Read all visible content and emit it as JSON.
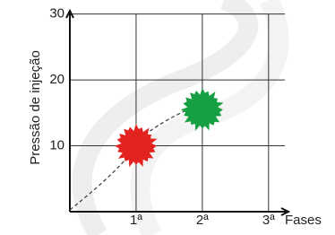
{
  "chart_data": {
    "type": "scatter",
    "ylabel": "Pressão de injeção",
    "xlabel": "Fases",
    "xlim": [
      0,
      3.3
    ],
    "ylim": [
      0,
      30.5
    ],
    "xticks": [
      {
        "value": 1,
        "label": "1ª"
      },
      {
        "value": 2,
        "label": "2ª"
      },
      {
        "value": 3,
        "label": "3ª"
      }
    ],
    "yticks": [
      10,
      20,
      30
    ],
    "grid": true,
    "series": [
      {
        "color": "#e3231f",
        "x": [
          1
        ],
        "values": [
          10
        ]
      },
      {
        "color": "#17a043",
        "x": [
          2
        ],
        "values": [
          15.5
        ]
      }
    ]
  }
}
